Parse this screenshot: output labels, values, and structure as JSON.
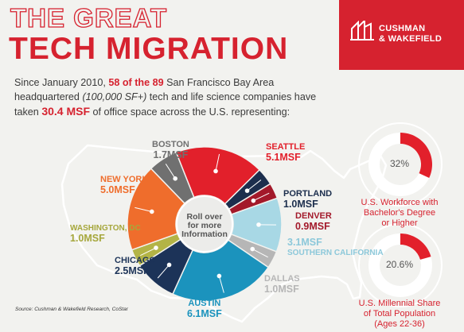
{
  "header": {
    "title_line1": "THE GREAT",
    "title_line2": "TECH MIGRATION",
    "brand": [
      "CUSHMAN",
      "& WAKEFIELD"
    ]
  },
  "intro": {
    "p1": "Since January 2010, ",
    "highlight1": "58 of the 89",
    "p2": " San Francisco Bay Area headquartered ",
    "italic": "(100,000 SF+)",
    "p3": " tech and life science companies have taken ",
    "highlight2": "30.4 MSF",
    "p4": " of office space across the U.S. representing:"
  },
  "center_text": [
    "Roll over",
    "for more",
    "Information"
  ],
  "chart_data": [
    {
      "type": "pie",
      "unit": "MSF",
      "slices": [
        {
          "name": "SEATTLE",
          "label": "5.1MSF",
          "value": 5.1,
          "color": "#e2202b"
        },
        {
          "name": "PORTLAND",
          "label": "1.0MSF",
          "value": 1.0,
          "color": "#1c2e4d"
        },
        {
          "name": "DENVER",
          "label": "0.9MSF",
          "value": 0.9,
          "color": "#a3192a"
        },
        {
          "name": "SOUTHERN CALIFORNIA",
          "label": "3.1MSF",
          "value": 3.1,
          "color": "#a8d8e5"
        },
        {
          "name": "DALLAS",
          "label": "1.0MSF",
          "value": 1.0,
          "color": "#b6b6b6"
        },
        {
          "name": "AUSTIN",
          "label": "6.1MSF",
          "value": 6.1,
          "color": "#1b93bd"
        },
        {
          "name": "CHICAGO",
          "label": "2.5MSF",
          "value": 2.5,
          "color": "#1c3358"
        },
        {
          "name": "WASHINGTON, DC",
          "label": "1.0MSF",
          "value": 1.0,
          "color": "#b3b446"
        },
        {
          "name": "NEW YORK",
          "label": "5.0MSF",
          "value": 5.0,
          "color": "#ef6d2c"
        },
        {
          "name": "BOSTON",
          "label": "1.7MSF",
          "value": 1.7,
          "color": "#707070"
        }
      ]
    },
    {
      "type": "pie",
      "value_percent": 32,
      "label": "32%",
      "caption": [
        "U.S. Workforce with",
        "Bachelor's Degree",
        "or Higher"
      ],
      "color": "#e2202b"
    },
    {
      "type": "pie",
      "value_percent": 20.6,
      "label": "20.6%",
      "caption": [
        "U.S. Millennial Share",
        "of Total Population",
        "(Ages 22-36)"
      ],
      "color": "#e2202b"
    }
  ],
  "source": "Source: Cushman & Wakefield Research, CoStar"
}
